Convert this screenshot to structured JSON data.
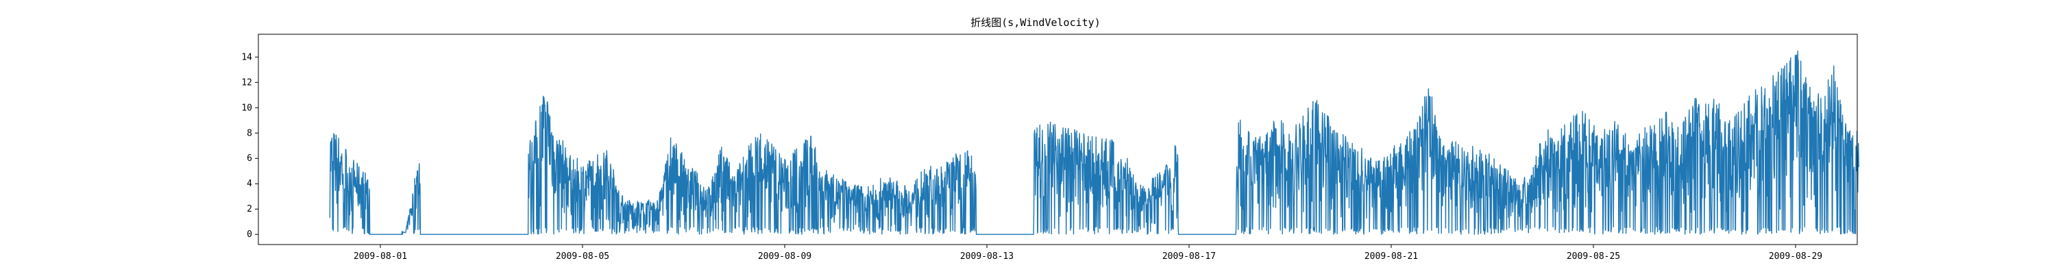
{
  "chart_data": {
    "type": "line",
    "title": "折线图(s,WindVelocity)",
    "xlabel": "",
    "ylabel": "",
    "x_range": [
      "2009-07-30",
      "2009-08-31"
    ],
    "ylim": [
      -0.8,
      15.8
    ],
    "x_ticks": [
      "2009-08-01",
      "2009-08-05",
      "2009-08-09",
      "2009-08-13",
      "2009-08-17",
      "2009-08-21",
      "2009-08-25",
      "2009-08-29"
    ],
    "y_ticks": [
      0,
      2,
      4,
      6,
      8,
      10,
      12,
      14
    ],
    "grid": false,
    "legend": "none",
    "series_color": "#1f77b4",
    "series": [
      {
        "sampling": "approximate envelope: daily [date, min, max] values in m/s, continuous gaps of 0",
        "envelope": [
          [
            "2009-07-31T00:00",
            0,
            8.6
          ],
          [
            "2009-07-31T06:00",
            0,
            7.6
          ],
          [
            "2009-07-31T12:00",
            0,
            5.8
          ],
          [
            "2009-07-31T18:00",
            0,
            4.8
          ],
          [
            "2009-08-01T00:00",
            0,
            0
          ],
          [
            "2009-08-01T12:00",
            0,
            0.2
          ],
          [
            "2009-08-01T18:00",
            0,
            6.2
          ],
          [
            "2009-08-02T00:00",
            0,
            0
          ],
          [
            "2009-08-02T12:00",
            0,
            0
          ],
          [
            "2009-08-03T00:00",
            0,
            0
          ],
          [
            "2009-08-03T12:00",
            0,
            0
          ],
          [
            "2009-08-04T00:00",
            0,
            7.8
          ],
          [
            "2009-08-04T06:00",
            0,
            12.2
          ],
          [
            "2009-08-04T12:00",
            0,
            8.4
          ],
          [
            "2009-08-04T18:00",
            0,
            6.3
          ],
          [
            "2009-08-05T00:00",
            0,
            5.8
          ],
          [
            "2009-08-05T12:00",
            0,
            6.8
          ],
          [
            "2009-08-05T18:00",
            0,
            3.2
          ],
          [
            "2009-08-06T00:00",
            0,
            2.6
          ],
          [
            "2009-08-06T12:00",
            0,
            2.8
          ],
          [
            "2009-08-06T18:00",
            0,
            8.1
          ],
          [
            "2009-08-07T00:00",
            0,
            6.2
          ],
          [
            "2009-08-07T12:00",
            0,
            3.8
          ],
          [
            "2009-08-07T18:00",
            0,
            7.1
          ],
          [
            "2009-08-08T00:00",
            0,
            4.9
          ],
          [
            "2009-08-08T12:00",
            0,
            8.6
          ],
          [
            "2009-08-08T18:00",
            0,
            7.4
          ],
          [
            "2009-08-09T00:00",
            0,
            6.0
          ],
          [
            "2009-08-09T12:00",
            0,
            8.0
          ],
          [
            "2009-08-09T18:00",
            0,
            5.4
          ],
          [
            "2009-08-10T00:00",
            0,
            4.6
          ],
          [
            "2009-08-10T12:00",
            0,
            4.0
          ],
          [
            "2009-08-10T18:00",
            0,
            3.9
          ],
          [
            "2009-08-11T00:00",
            0,
            4.8
          ],
          [
            "2009-08-11T12:00",
            0,
            3.6
          ],
          [
            "2009-08-11T18:00",
            0,
            5.8
          ],
          [
            "2009-08-12T00:00",
            0,
            5.2
          ],
          [
            "2009-08-12T12:00",
            0,
            6.8
          ],
          [
            "2009-08-12T18:00",
            0,
            6.6
          ],
          [
            "2009-08-13T00:00",
            0,
            0
          ],
          [
            "2009-08-13T12:00",
            0,
            0
          ],
          [
            "2009-08-14T00:00",
            0,
            8.8
          ],
          [
            "2009-08-14T06:00",
            0,
            9.4
          ],
          [
            "2009-08-14T12:00",
            0,
            8.8
          ],
          [
            "2009-08-14T18:00",
            0,
            8.3
          ],
          [
            "2009-08-15T00:00",
            0,
            7.8
          ],
          [
            "2009-08-15T12:00",
            0,
            7.6
          ],
          [
            "2009-08-15T18:00",
            0,
            6.4
          ],
          [
            "2009-08-16T00:00",
            0,
            3.8
          ],
          [
            "2009-08-16T12:00",
            0,
            5.1
          ],
          [
            "2009-08-16T18:00",
            0,
            7.6
          ],
          [
            "2009-08-17T00:00",
            0,
            0
          ],
          [
            "2009-08-17T12:00",
            0,
            0
          ],
          [
            "2009-08-18T00:00",
            0,
            10.1
          ],
          [
            "2009-08-18T06:00",
            0,
            8.2
          ],
          [
            "2009-08-18T12:00",
            0,
            7.8
          ],
          [
            "2009-08-18T18:00",
            0,
            9.5
          ],
          [
            "2009-08-19T00:00",
            0,
            8.0
          ],
          [
            "2009-08-19T12:00",
            0,
            10.8
          ],
          [
            "2009-08-19T18:00",
            0,
            9.4
          ],
          [
            "2009-08-20T00:00",
            0,
            8.2
          ],
          [
            "2009-08-20T12:00",
            0,
            6.6
          ],
          [
            "2009-08-20T18:00",
            0,
            5.8
          ],
          [
            "2009-08-21T00:00",
            0,
            6.8
          ],
          [
            "2009-08-21T12:00",
            0,
            8.8
          ],
          [
            "2009-08-21T18:00",
            0,
            12.1
          ],
          [
            "2009-08-22T00:00",
            0,
            7.6
          ],
          [
            "2009-08-22T12:00",
            0,
            7.2
          ],
          [
            "2009-08-22T18:00",
            0,
            6.8
          ],
          [
            "2009-08-23T00:00",
            0,
            6.4
          ],
          [
            "2009-08-23T12:00",
            0,
            4.4
          ],
          [
            "2009-08-23T18:00",
            0,
            4.6
          ],
          [
            "2009-08-24T00:00",
            0,
            8.2
          ],
          [
            "2009-08-24T12:00",
            0,
            8.8
          ],
          [
            "2009-08-24T18:00",
            0,
            10.2
          ],
          [
            "2009-08-25T00:00",
            0,
            8.8
          ],
          [
            "2009-08-25T12:00",
            0,
            9.2
          ],
          [
            "2009-08-25T18:00",
            0,
            7.4
          ],
          [
            "2009-08-26T00:00",
            0,
            8.6
          ],
          [
            "2009-08-26T12:00",
            0,
            9.8
          ],
          [
            "2009-08-26T18:00",
            0,
            8.6
          ],
          [
            "2009-08-27T00:00",
            0,
            11.0
          ],
          [
            "2009-08-27T12:00",
            0,
            10.8
          ],
          [
            "2009-08-27T18:00",
            0,
            9.0
          ],
          [
            "2009-08-28T00:00",
            0,
            10.8
          ],
          [
            "2009-08-28T12:00",
            0,
            12.4
          ],
          [
            "2009-08-28T18:00",
            0,
            13.2
          ],
          [
            "2009-08-29T00:00",
            0,
            15.0
          ],
          [
            "2009-08-29T06:00",
            0,
            12.4
          ],
          [
            "2009-08-29T12:00",
            0,
            10.8
          ],
          [
            "2009-08-29T18:00",
            0,
            14.0
          ],
          [
            "2009-08-30T00:00",
            0,
            8.6
          ],
          [
            "2009-08-30T06:00",
            0,
            8.4
          ]
        ]
      }
    ]
  }
}
